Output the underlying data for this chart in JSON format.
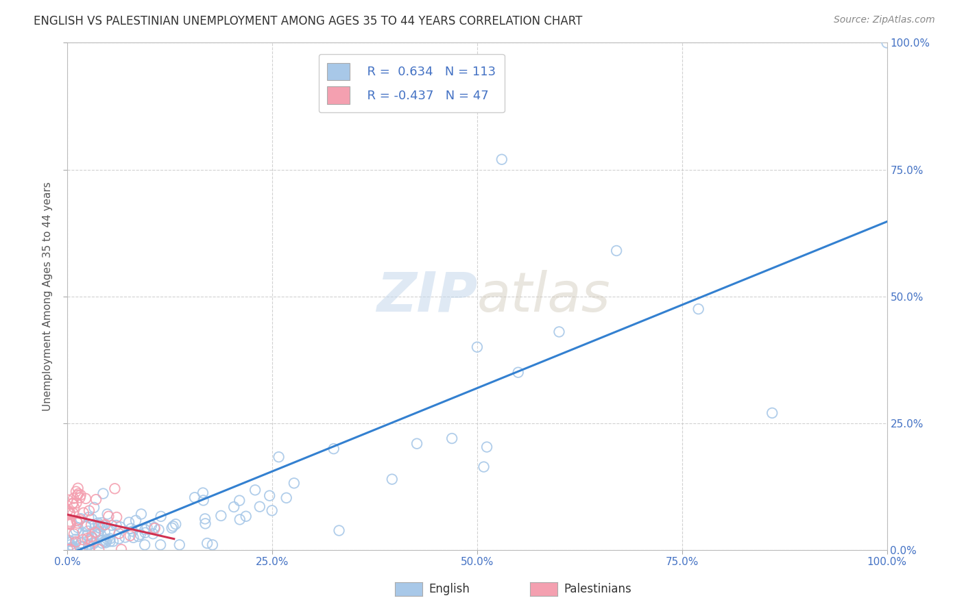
{
  "title": "ENGLISH VS PALESTINIAN UNEMPLOYMENT AMONG AGES 35 TO 44 YEARS CORRELATION CHART",
  "source": "Source: ZipAtlas.com",
  "ylabel": "Unemployment Among Ages 35 to 44 years",
  "xlim": [
    0,
    1.0
  ],
  "ylim": [
    0,
    1.0
  ],
  "xtick_vals": [
    0,
    0.25,
    0.5,
    0.75,
    1.0
  ],
  "xtick_labels": [
    "0.0%",
    "25.0%",
    "50.0%",
    "75.0%",
    "100.0%"
  ],
  "ytick_vals": [
    0,
    0.25,
    0.5,
    0.75,
    1.0
  ],
  "ytick_labels": [
    "0.0%",
    "25.0%",
    "50.0%",
    "75.0%",
    "100.0%"
  ],
  "english_R": 0.634,
  "english_N": 113,
  "palestinian_R": -0.437,
  "palestinian_N": 47,
  "english_color": "#a8c8e8",
  "english_line_color": "#3380d0",
  "palestinian_color": "#f4a0b0",
  "palestinian_line_color": "#d03050",
  "legend_color_english": "#a8c8e8",
  "legend_color_palestinian": "#f4a0b0",
  "watermark_zip": "ZIP",
  "watermark_atlas": "atlas",
  "background_color": "#ffffff",
  "tick_color": "#4472c4",
  "title_color": "#333333",
  "source_color": "#888888",
  "grid_color": "#cccccc",
  "ylabel_color": "#555555",
  "legend_label_color": "#4472c4",
  "bottom_legend_color": "#333333"
}
